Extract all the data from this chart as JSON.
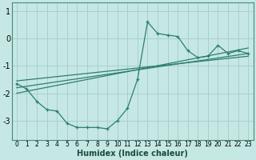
{
  "xlabel": "Humidex (Indice chaleur)",
  "bg_color": "#c5e8e5",
  "grid_color": "#aacfcc",
  "line_color": "#2e7d70",
  "xlim": [
    -0.5,
    23.5
  ],
  "ylim": [
    -3.7,
    1.3
  ],
  "yticks": [
    1,
    0,
    -1,
    -2,
    -3
  ],
  "xticks": [
    0,
    1,
    2,
    3,
    4,
    5,
    6,
    7,
    8,
    9,
    10,
    11,
    12,
    13,
    14,
    15,
    16,
    17,
    18,
    19,
    20,
    21,
    22,
    23
  ],
  "line1_x": [
    0,
    1,
    2,
    3,
    4,
    5,
    6,
    7,
    8,
    9,
    10,
    11,
    12,
    13,
    14,
    15,
    16,
    17,
    18,
    19,
    20,
    21,
    22,
    23
  ],
  "line1_y": [
    -1.65,
    -1.85,
    -2.3,
    -2.6,
    -2.65,
    -3.1,
    -3.25,
    -3.25,
    -3.25,
    -3.3,
    -3.0,
    -2.55,
    -1.5,
    0.6,
    0.18,
    0.12,
    0.07,
    -0.45,
    -0.7,
    -0.65,
    -0.25,
    -0.55,
    -0.45,
    -0.55
  ],
  "line2_x": [
    0,
    23
  ],
  "line2_y": [
    -2.0,
    -0.35
  ],
  "line3_x": [
    0,
    23
  ],
  "line3_y": [
    -1.8,
    -0.55
  ],
  "line4_x": [
    0,
    23
  ],
  "line4_y": [
    -1.55,
    -0.65
  ]
}
